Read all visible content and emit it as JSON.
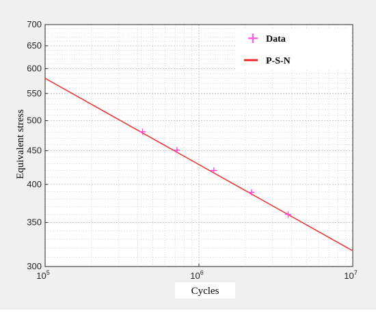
{
  "chart_data": {
    "type": "line",
    "xlabel": "Cycles",
    "ylabel": "Equivalent stress",
    "xscale": "log",
    "yscale": "log",
    "xlim": [
      100000,
      10000000
    ],
    "ylim": [
      300,
      700
    ],
    "grid": true,
    "legend_position": "top-right",
    "x_ticks": [
      {
        "value": 100000,
        "base": "10",
        "exp": "5"
      },
      {
        "value": 1000000,
        "base": "10",
        "exp": "6"
      },
      {
        "value": 10000000,
        "base": "10",
        "exp": "7"
      }
    ],
    "y_ticks": [
      {
        "value": 300,
        "label": "300"
      },
      {
        "value": 350,
        "label": "350"
      },
      {
        "value": 400,
        "label": "400"
      },
      {
        "value": 450,
        "label": "450"
      },
      {
        "value": 500,
        "label": "500"
      },
      {
        "value": 550,
        "label": "550"
      },
      {
        "value": 600,
        "label": "600"
      },
      {
        "value": 650,
        "label": "650"
      },
      {
        "value": 700,
        "label": "700"
      }
    ],
    "series": [
      {
        "name": "Data",
        "type": "scatter",
        "marker": "plus",
        "color": "#ff44dd",
        "points": [
          {
            "x": 430000,
            "y": 481
          },
          {
            "x": 720000,
            "y": 451
          },
          {
            "x": 1250000,
            "y": 420
          },
          {
            "x": 2200000,
            "y": 389
          },
          {
            "x": 3800000,
            "y": 360
          }
        ]
      },
      {
        "name": "P-S-N",
        "type": "line",
        "color": "#e83a3a",
        "points": [
          {
            "x": 100000,
            "y": 580
          },
          {
            "x": 10000000,
            "y": 317
          }
        ]
      }
    ]
  }
}
